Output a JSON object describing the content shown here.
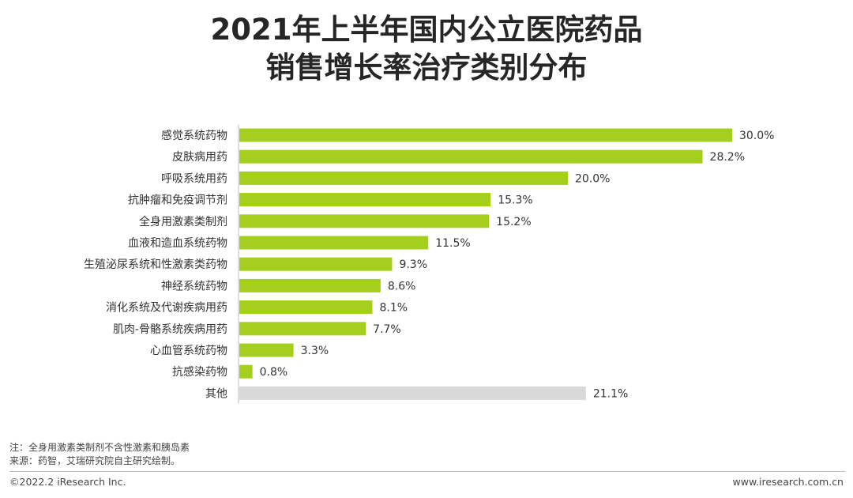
{
  "title_line1": "2021年上半年国内公立医院药品",
  "title_line2": "销售增长率治疗类别分布",
  "colors": {
    "bar": "#a5cf1d",
    "bar_other": "#d9d9d9"
  },
  "chart_data": {
    "type": "bar",
    "orientation": "horizontal",
    "categories": [
      "感觉系统药物",
      "皮肤病用药",
      "呼吸系统用药",
      "抗肿瘤和免疫调节剂",
      "全身用激素类制剂",
      "血液和造血系统药物",
      "生殖泌尿系统和性激素类药物",
      "神经系统药物",
      "消化系统及代谢疾病用药",
      "肌肉-骨骼系统疾病用药",
      "心血管系统药物",
      "抗感染药物",
      "其他"
    ],
    "values": [
      30.0,
      28.2,
      20.0,
      15.3,
      15.2,
      11.5,
      9.3,
      8.6,
      8.1,
      7.7,
      3.3,
      0.8,
      21.1
    ],
    "value_labels": [
      "30.0%",
      "28.2%",
      "20.0%",
      "15.3%",
      "15.2%",
      "11.5%",
      "9.3%",
      "8.6%",
      "8.1%",
      "7.7%",
      "3.3%",
      "0.8%",
      "21.1%"
    ],
    "unit": "%",
    "xlim": [
      0,
      30
    ],
    "grid": false,
    "legend": "none"
  },
  "notes": {
    "note": "注：全身用激素类制剂不含性激素和胰岛素",
    "source": "来源：药智，艾瑞研究院自主研究绘制。"
  },
  "footer": {
    "copyright": "©2022.2 iResearch Inc.",
    "website": "www.iresearch.com.cn"
  }
}
